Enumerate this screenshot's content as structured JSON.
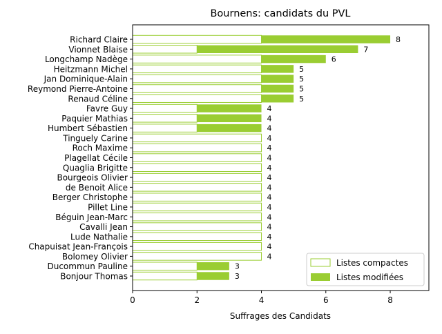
{
  "chart_data": {
    "type": "bar",
    "orientation": "horizontal",
    "stacked": true,
    "title": "Bournens: candidats du PVL",
    "xlabel": "Suffrages des Candidats",
    "ylabel": "",
    "xlim": [
      0,
      9.2
    ],
    "xticks": [
      0,
      2,
      4,
      6,
      8
    ],
    "grid": false,
    "legend_position": "lower-right",
    "colors": {
      "compact_edge": "#9acd32",
      "compact_fill": "#ffffff",
      "modified_fill": "#9acd32"
    },
    "categories": [
      "Richard Claire",
      "Vionnet Blaise",
      "Longchamp Nadège",
      "Heitzmann Michel",
      "Jan Dominique-Alain",
      "Reymond Pierre-Antoine",
      "Renaud Céline",
      "Favre Guy",
      "Paquier Mathias",
      "Humbert Sébastien",
      "Tinguely Carine",
      "Roch Maxime",
      "Plagellat Cécile",
      "Quaglia Brigitte",
      "Bourgeois Olivier",
      "de Benoit Alice",
      "Berger Christophe",
      "Pillet Line",
      "Béguin Jean-Marc",
      "Cavalli Jean",
      "Lude Nathalie",
      "Chapuisat Jean-François",
      "Bolomey Olivier",
      "Ducommun Pauline",
      "Bonjour Thomas"
    ],
    "series": [
      {
        "name": "Listes compactes",
        "values": [
          4,
          2,
          4,
          4,
          4,
          4,
          4,
          2,
          2,
          2,
          4,
          4,
          4,
          4,
          4,
          4,
          4,
          4,
          4,
          4,
          4,
          4,
          4,
          2,
          2
        ]
      },
      {
        "name": "Listes modifiées",
        "values": [
          4,
          5,
          2,
          1,
          1,
          1,
          1,
          2,
          2,
          2,
          0,
          0,
          0,
          0,
          0,
          0,
          0,
          0,
          0,
          0,
          0,
          0,
          0,
          1,
          1
        ]
      }
    ],
    "totals": [
      8,
      7,
      6,
      5,
      5,
      5,
      5,
      4,
      4,
      4,
      4,
      4,
      4,
      4,
      4,
      4,
      4,
      4,
      4,
      4,
      4,
      4,
      4,
      3,
      3
    ]
  }
}
